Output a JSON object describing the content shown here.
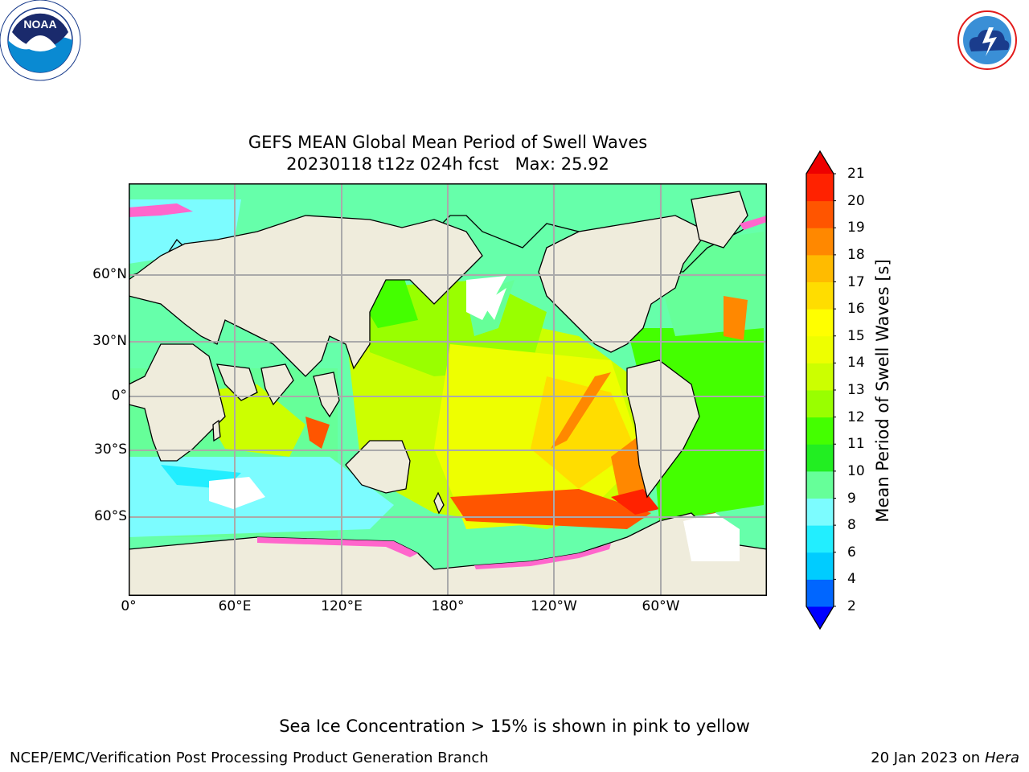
{
  "logos": {
    "left": {
      "name": "NOAA",
      "ring_text": "NATIONAL OCEANIC AND ATMOSPHERIC ADMINISTRATION • U.S. DEPARTMENT OF COMMERCE"
    },
    "right": {
      "ring_text": "NATIONAL WEATHER SERVICE"
    }
  },
  "title": {
    "line1": "GEFS MEAN Global Mean Period of Swell Waves",
    "line2": "20230118 t12z 024h fcst   Max: 25.92"
  },
  "map": {
    "lat_labels": [
      "60°N",
      "30°N",
      "0°",
      "30°S",
      "60°S"
    ],
    "lon_labels": [
      "0°",
      "60°E",
      "120°E",
      "180°",
      "120°W",
      "60°W"
    ]
  },
  "colorbar": {
    "label": "Mean Period of Swell Waves [s]",
    "ticks": [
      "2",
      "4",
      "6",
      "8",
      "9",
      "10",
      "11",
      "12",
      "13",
      "14",
      "15",
      "16",
      "17",
      "18",
      "19",
      "20",
      "21"
    ],
    "colors": [
      "#0066ff",
      "#00ccff",
      "#22eeff",
      "#7cfcff",
      "#66ff99",
      "#22ee22",
      "#44ff00",
      "#99ff00",
      "#ccff00",
      "#eeff00",
      "#ffff00",
      "#ffdd00",
      "#ffbb00",
      "#ff8800",
      "#ff5500",
      "#ff2200"
    ],
    "under_color": "#0000ff",
    "over_color": "#ee0000"
  },
  "footer": {
    "ice_note": "Sea Ice Concentration > 15% is shown in pink to yellow",
    "credit": "NCEP/EMC/Verification Post Processing Product Generation Branch",
    "date": "20 Jan 2023 on",
    "machine": "Hera"
  }
}
